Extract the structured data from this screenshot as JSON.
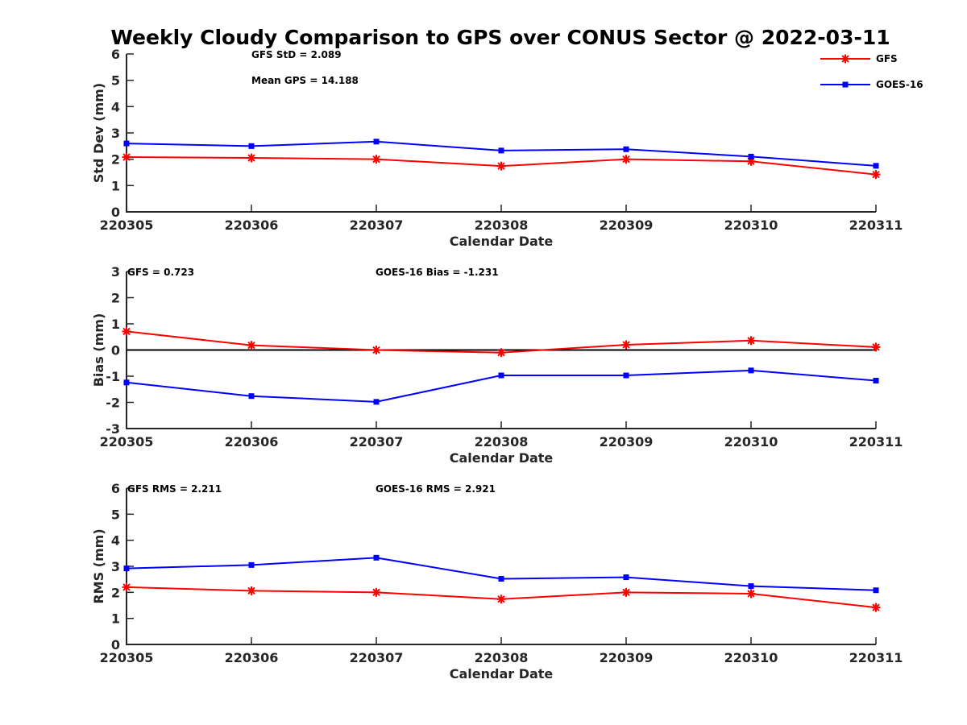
{
  "chart_data": {
    "type": "line",
    "title": "Weekly Cloudy Comparison to GPS over CONUS Sector @ 2022-03-11",
    "colors": {
      "GFS": "#ff0000",
      "GOES-16": "#0000ff",
      "zero_line": "#000000"
    },
    "legend": {
      "placement": "top-right",
      "entries": [
        {
          "name": "GFS",
          "color": "#ff0000",
          "marker": "asterisk"
        },
        {
          "name": "GOES-16",
          "color": "#0000ff",
          "marker": "square"
        }
      ]
    },
    "panels": [
      {
        "id": "std",
        "xlabel": "Calendar Date",
        "ylabel": "Std Dev (mm)",
        "categories": [
          "220305",
          "220306",
          "220307",
          "220308",
          "220309",
          "220310",
          "220311"
        ],
        "ylim": [
          0,
          6
        ],
        "yticks": [
          "0",
          "1",
          "2",
          "3",
          "4",
          "5",
          "6"
        ],
        "zero_line": false,
        "annotations": [
          "GFS StD = 2.089",
          "Mean GPS = 14.188"
        ],
        "series": [
          {
            "name": "GFS",
            "values": [
              2.08,
              2.05,
              2.0,
              1.74,
              2.0,
              1.92,
              1.42
            ]
          },
          {
            "name": "GOES-16",
            "values": [
              2.6,
              2.5,
              2.67,
              2.33,
              2.38,
              2.1,
              1.75
            ]
          }
        ]
      },
      {
        "id": "bias",
        "xlabel": "Calendar Date",
        "ylabel": "Bias (mm)",
        "categories": [
          "220305",
          "220306",
          "220307",
          "220308",
          "220309",
          "220310",
          "220311"
        ],
        "ylim": [
          -3,
          3
        ],
        "yticks": [
          "-3",
          "-2",
          "-1",
          "0",
          "1",
          "2",
          "3"
        ],
        "zero_line": true,
        "annotations": [
          "GFS = 0.723",
          "GOES-16 Bias  = -1.231"
        ],
        "series": [
          {
            "name": "GFS",
            "values": [
              0.71,
              0.18,
              0.0,
              -0.1,
              0.2,
              0.36,
              0.11
            ]
          },
          {
            "name": "GOES-16",
            "values": [
              -1.24,
              -1.76,
              -1.98,
              -0.97,
              -0.97,
              -0.78,
              -1.17
            ]
          }
        ]
      },
      {
        "id": "rms",
        "xlabel": "Calendar Date",
        "ylabel": "RMS (mm)",
        "categories": [
          "220305",
          "220306",
          "220307",
          "220308",
          "220309",
          "220310",
          "220311"
        ],
        "ylim": [
          0,
          6
        ],
        "yticks": [
          "0",
          "1",
          "2",
          "3",
          "4",
          "5",
          "6"
        ],
        "zero_line": false,
        "annotations": [
          "GFS RMS = 2.211",
          "GOES-16 RMS = 2.921"
        ],
        "series": [
          {
            "name": "GFS",
            "values": [
              2.2,
              2.06,
              2.0,
              1.74,
              2.0,
              1.95,
              1.42
            ]
          },
          {
            "name": "GOES-16",
            "values": [
              2.92,
              3.05,
              3.33,
              2.52,
              2.58,
              2.24,
              2.08
            ]
          }
        ]
      }
    ]
  }
}
